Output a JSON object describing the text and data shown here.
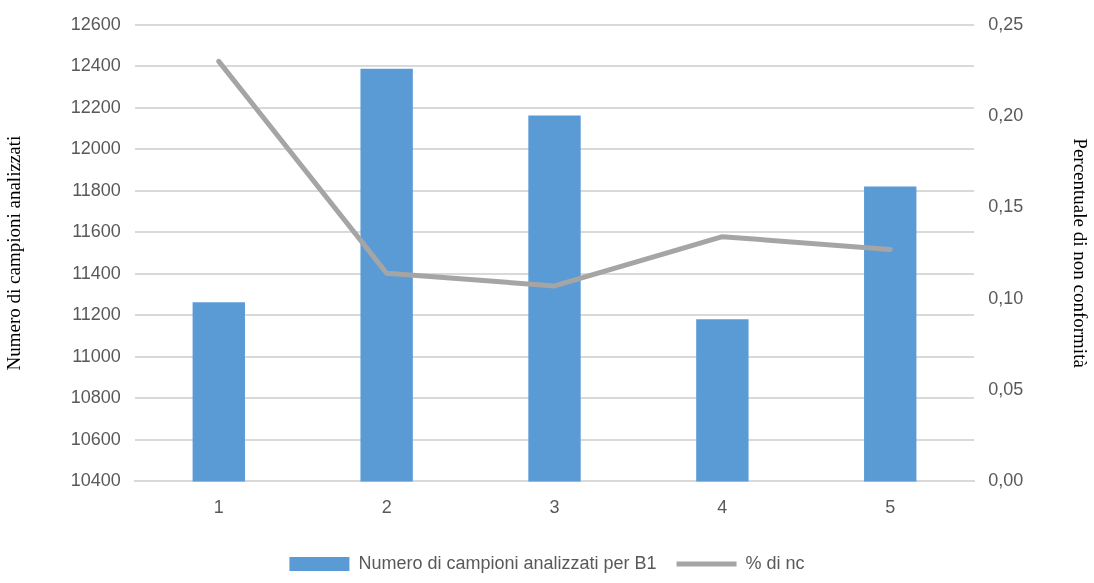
{
  "chart_data": {
    "type": "bar",
    "categories": [
      "1",
      "2",
      "3",
      "4",
      "5"
    ],
    "series": [
      {
        "name": "Numero di campioni analizzati per B1",
        "color": "#5b9bd5",
        "values": [
          11263,
          12388,
          12163,
          11181,
          11821
        ]
      },
      {
        "name": "% di nc",
        "type": "line",
        "axis": "y2",
        "color": "#a5a5a5",
        "values": [
          0.23,
          0.114,
          0.107,
          0.134,
          0.127
        ]
      }
    ],
    "ylabel": "Numero di campioni analizzati",
    "y2label": "Percentuale di non conformità",
    "ylim": [
      10400,
      12600
    ],
    "yticks": [
      10400,
      10600,
      10800,
      11000,
      11200,
      11400,
      11600,
      11800,
      12000,
      12200,
      12400,
      12600
    ],
    "y2lim": [
      0,
      0.25
    ],
    "y2ticks": [
      {
        "value": 0,
        "label": "0,00"
      },
      {
        "value": 0.05,
        "label": "0,05"
      },
      {
        "value": 0.1,
        "label": "0,10"
      },
      {
        "value": 0.15,
        "label": "0,15"
      },
      {
        "value": 0.2,
        "label": "0,20"
      },
      {
        "value": 0.25,
        "label": "0,25"
      }
    ],
    "grid": "y",
    "legend": "bottom",
    "marker": "none",
    "line_style": "solid"
  }
}
